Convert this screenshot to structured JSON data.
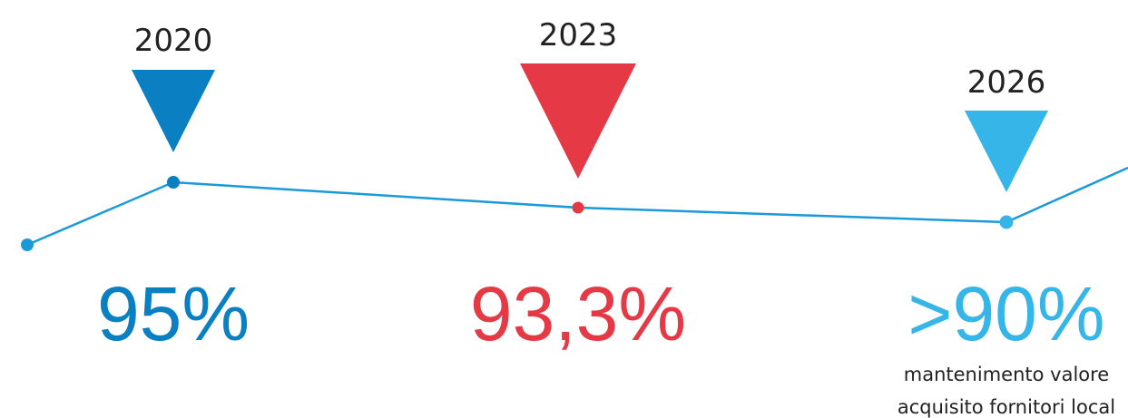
{
  "milestones": [
    {
      "year": "2020",
      "value": "95%"
    },
    {
      "year": "2023",
      "value": "93,3%"
    },
    {
      "year": "2026",
      "value": ">90%",
      "note": [
        "mantenimento valore",
        "acquisito fornitori local"
      ]
    }
  ]
}
